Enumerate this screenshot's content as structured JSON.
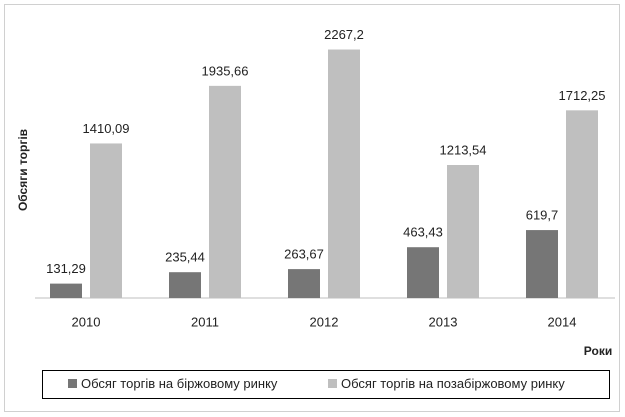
{
  "chart_data": {
    "type": "bar",
    "y_label": "Обсяги торгів",
    "x_label": "Роки",
    "categories": [
      "2010",
      "2011",
      "2012",
      "2013",
      "2014"
    ],
    "series": [
      {
        "name": "Обсяг торгів на біржовому ринку",
        "color": "#767676",
        "values": [
          131.29,
          235.44,
          263.67,
          463.43,
          619.7
        ],
        "value_labels": [
          "131,29",
          "235,44",
          "263,67",
          "463,43",
          "619,7"
        ]
      },
      {
        "name": "Обсяг торгів на позабіржовому ринку",
        "color": "#bfbfbf",
        "values": [
          1410.09,
          1935.66,
          2267.2,
          1213.54,
          1712.25
        ],
        "value_labels": [
          "1410,09",
          "1935,66",
          "2267,2",
          "1213,54",
          "1712,25"
        ]
      }
    ],
    "ylim": [
      0,
      2500
    ],
    "legend": "bottom"
  }
}
